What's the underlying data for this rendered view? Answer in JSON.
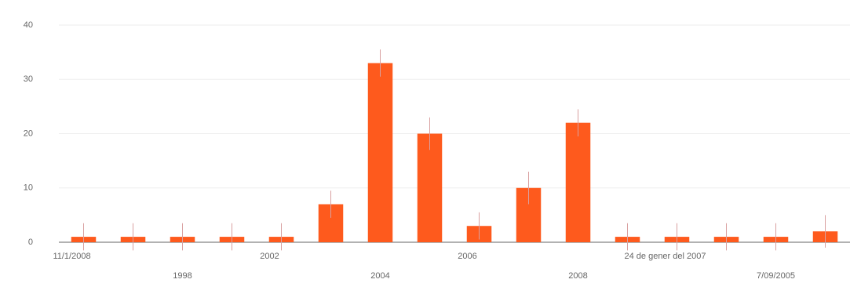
{
  "chart_data": {
    "type": "bar",
    "categories": [
      "11/1/2008",
      null,
      "1998",
      null,
      "2002",
      null,
      "2004",
      null,
      "2006",
      null,
      "2008",
      null,
      "24 de gener del 2007",
      null,
      "7/09/2005",
      null
    ],
    "values": [
      1,
      1,
      1,
      1,
      1,
      7,
      33,
      20,
      3,
      10,
      22,
      1,
      1,
      1,
      1,
      2
    ],
    "errors": [
      2.5,
      2.5,
      2.5,
      2.5,
      2.5,
      2.5,
      2.5,
      3,
      2.5,
      3,
      2.5,
      2.5,
      2.5,
      2.5,
      2.5,
      3
    ],
    "color": "#fe5a1d",
    "error_color": "#d9a0a0",
    "ylim": [
      0,
      40
    ],
    "yticks": [
      0,
      10,
      20,
      30,
      40
    ],
    "grid": true
  }
}
